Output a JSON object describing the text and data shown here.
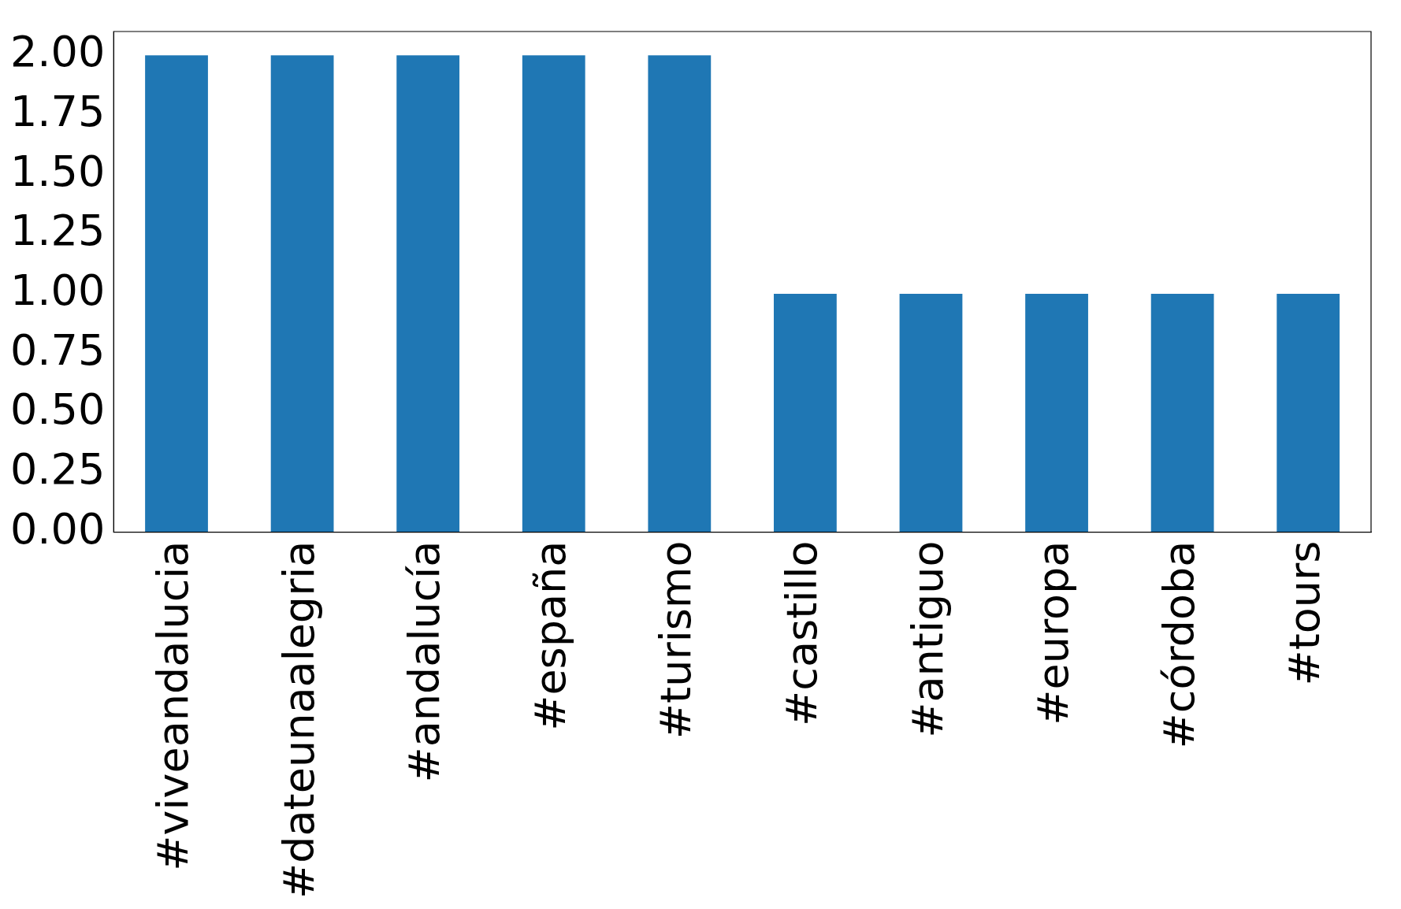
{
  "chart_data": {
    "type": "bar",
    "categories": [
      "#viveandalucia",
      "#dateunaalegria",
      "#andalucía",
      "#españa",
      "#turismo",
      "#castillo",
      "#antiguo",
      "#europa",
      "#córdoba",
      "#tours"
    ],
    "values": [
      2,
      2,
      2,
      2,
      2,
      1,
      1,
      1,
      1,
      1
    ],
    "color": "#1f77b4",
    "ylim": [
      0,
      2.1
    ],
    "yticks": [
      {
        "value": 0,
        "label": "0.00"
      },
      {
        "value": 0.25,
        "label": "0.25"
      },
      {
        "value": 0.5,
        "label": "0.50"
      },
      {
        "value": 0.75,
        "label": "0.75"
      },
      {
        "value": 1,
        "label": "1.00"
      },
      {
        "value": 1.25,
        "label": "1.25"
      },
      {
        "value": 1.5,
        "label": "1.50"
      },
      {
        "value": 1.75,
        "label": "1.75"
      },
      {
        "value": 2,
        "label": "2.00"
      }
    ],
    "grid": false,
    "legend": false
  }
}
